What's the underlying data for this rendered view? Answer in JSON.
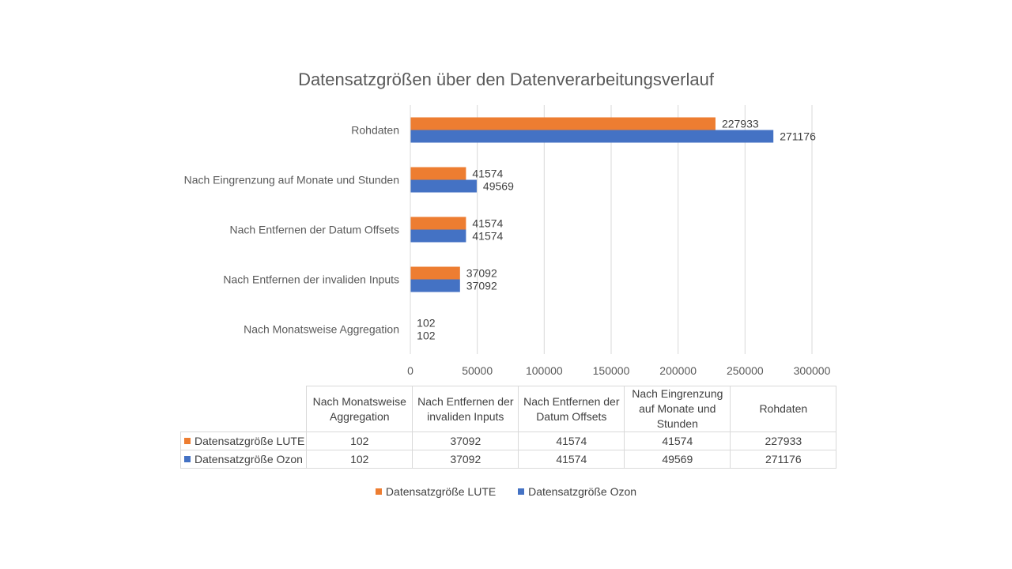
{
  "chart_data": {
    "type": "bar",
    "orientation": "horizontal",
    "title": "Datensatzgrößen über den Datenverarbeitungsverlauf",
    "categories": [
      "Nach Monatsweise Aggregation",
      "Nach Entfernen der invaliden Inputs",
      "Nach Entfernen der Datum Offsets",
      "Nach Eingrenzung auf Monate und Stunden",
      "Rohdaten"
    ],
    "table_headers": [
      "Nach Monatsweise Aggregation",
      "Nach Entfernen der invaliden Inputs",
      "Nach Entfernen der Datum Offsets",
      "Nach Eingrenzung auf Monate und Stunden",
      "Rohdaten"
    ],
    "series": [
      {
        "name": "Datensatzgröße LUTE",
        "color": "#ED7D31",
        "values": [
          102,
          37092,
          41574,
          41574,
          227933
        ]
      },
      {
        "name": "Datensatzgröße Ozon",
        "color": "#4472C4",
        "values": [
          102,
          37092,
          41574,
          49569,
          271176
        ]
      }
    ],
    "xlim": [
      0,
      300000
    ],
    "xticks": [
      "0",
      "50000",
      "100000",
      "150000",
      "200000",
      "250000",
      "300000"
    ],
    "grid": true,
    "legend_position": "bottom",
    "data_table": true
  }
}
